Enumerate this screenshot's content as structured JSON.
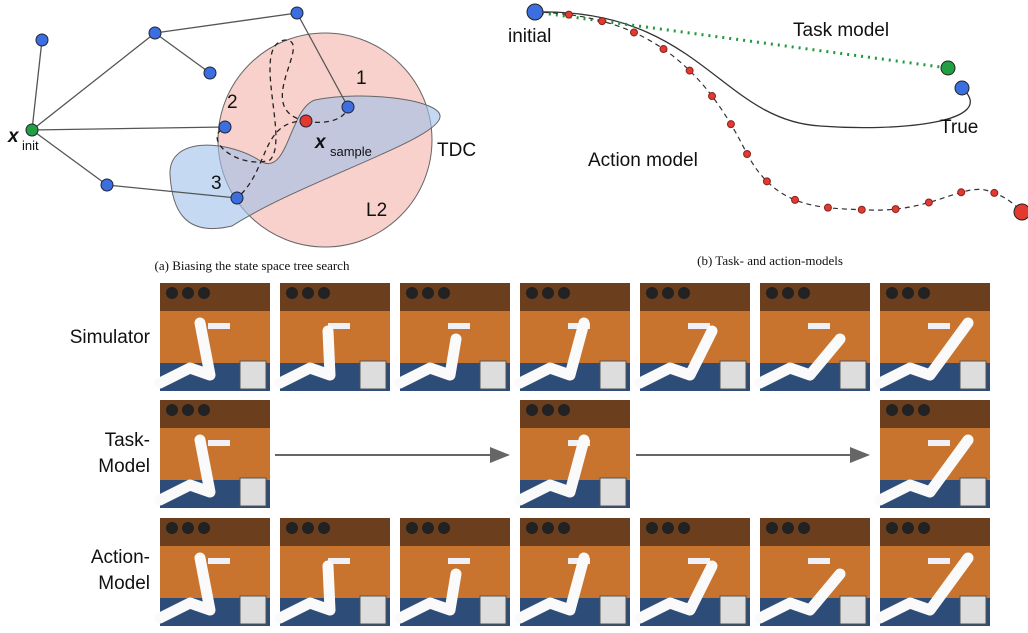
{
  "panel_a": {
    "caption": "(a) Biasing the state space tree search",
    "x_init": {
      "symbol": "x",
      "subscript": "init"
    },
    "x_sample": {
      "symbol": "x",
      "subscript": "sample"
    },
    "node_labels": [
      "1",
      "2",
      "3"
    ],
    "region_labels": [
      "TDC",
      "L2"
    ]
  },
  "panel_b": {
    "caption": "(b) Task- and action-models",
    "labels": [
      "initial",
      "Task model",
      "True",
      "Action model"
    ]
  },
  "rows": [
    [
      "Simulator"
    ],
    [
      "Task-",
      "Model"
    ],
    [
      "Action-",
      "Model"
    ]
  ]
}
